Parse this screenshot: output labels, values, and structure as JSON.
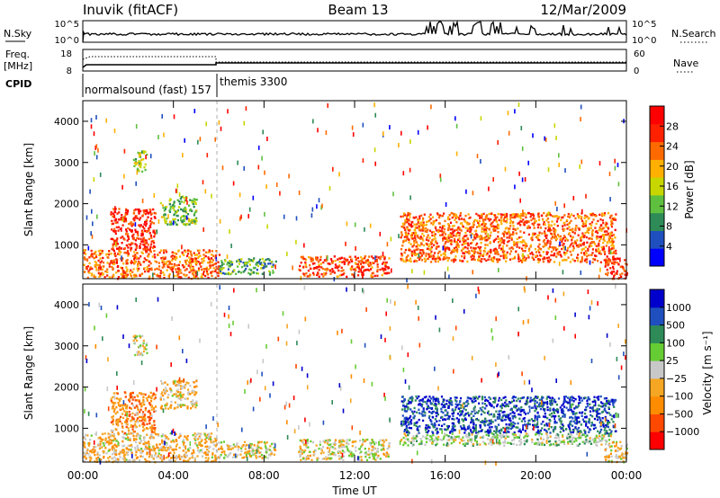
{
  "header": {
    "station": "Inuvik (fitACF)",
    "beam": "Beam 13",
    "date": "12/Mar/2009"
  },
  "nsky_panel": {
    "left_label": "N.Sky",
    "right_label": "N.Search",
    "left_ticks": [
      "10^5",
      "10^0"
    ],
    "right_ticks": [
      "10^5",
      "10^0"
    ]
  },
  "freq_panel": {
    "left_label_1": "Freq.",
    "left_label_2": "[MHz]",
    "right_label": "Nave",
    "left_ticks": [
      "18",
      "8"
    ],
    "right_ticks": [
      "60",
      "0"
    ]
  },
  "cpid": {
    "label": "CPID",
    "modes": [
      {
        "name": "normalsound (fast) 157",
        "start_hour": 0
      },
      {
        "name": "themis 3300",
        "start_hour": 6
      }
    ]
  },
  "colors": {
    "scale": [
      "#0000ff",
      "#1f4fbf",
      "#2e8b57",
      "#5fbf3f",
      "#c8d600",
      "#ffb000",
      "#ff6a00",
      "#ff2000",
      "#ff0000"
    ],
    "velocity_scale": [
      "#ff0000",
      "#ff4800",
      "#ff8c00",
      "#f5a623",
      "#c8c8c8",
      "#66cc33",
      "#2e8b57",
      "#1f4fbf",
      "#0000cc"
    ]
  },
  "chart_data": [
    {
      "type": "heatmap",
      "name": "power",
      "ylabel": "Slant Range [km]",
      "xlabel": "",
      "x_range_hours": [
        0,
        24
      ],
      "ylim": [
        180,
        4500
      ],
      "x_ticks": [
        "00:00",
        "04:00",
        "08:00",
        "12:00",
        "16:00",
        "20:00",
        "00:00"
      ],
      "y_ticks": [
        "1000",
        "2000",
        "3000",
        "4000"
      ],
      "colorbar": {
        "label": "Power [dB]",
        "ticks": [
          "28",
          "24",
          "20",
          "16",
          "12",
          "8",
          "4"
        ],
        "range": [
          0,
          30
        ]
      },
      "regions": [
        {
          "t0": 0.0,
          "t1": 6.0,
          "r0": 200,
          "r1": 900,
          "value": 22
        },
        {
          "t0": 1.2,
          "t1": 3.2,
          "r0": 900,
          "r1": 1900,
          "value": 26
        },
        {
          "t0": 3.4,
          "t1": 5.0,
          "r0": 1500,
          "r1": 2200,
          "value": 12
        },
        {
          "t0": 2.2,
          "t1": 2.8,
          "r0": 2800,
          "r1": 3300,
          "value": 14
        },
        {
          "t0": 6.0,
          "t1": 8.5,
          "r0": 300,
          "r1": 700,
          "value": 10
        },
        {
          "t0": 9.5,
          "t1": 13.5,
          "r0": 250,
          "r1": 750,
          "value": 24
        },
        {
          "t0": 14.0,
          "t1": 23.5,
          "r0": 600,
          "r1": 1800,
          "value": 22
        },
        {
          "t0": 23.0,
          "t1": 24.0,
          "r0": 200,
          "r1": 700,
          "value": 26
        }
      ]
    },
    {
      "type": "heatmap",
      "name": "velocity",
      "ylabel": "Slant Range [km]",
      "xlabel": "Time UT",
      "x_range_hours": [
        0,
        24
      ],
      "ylim": [
        180,
        4500
      ],
      "x_ticks": [
        "00:00",
        "04:00",
        "08:00",
        "12:00",
        "16:00",
        "20:00",
        "00:00"
      ],
      "y_ticks": [
        "1000",
        "2000",
        "3000",
        "4000"
      ],
      "colorbar": {
        "label": "Velocity [m s⁻¹]",
        "ticks": [
          "1000",
          "500",
          "100",
          "25",
          "−25",
          "−100",
          "−500",
          "−1000"
        ],
        "range": [
          -1000,
          1000
        ]
      },
      "regions": [
        {
          "t0": 0.0,
          "t1": 6.0,
          "r0": 200,
          "r1": 900,
          "value": -200
        },
        {
          "t0": 1.2,
          "t1": 3.2,
          "r0": 900,
          "r1": 1900,
          "value": -400
        },
        {
          "t0": 3.4,
          "t1": 5.0,
          "r0": 1500,
          "r1": 2200,
          "value": -150
        },
        {
          "t0": 2.2,
          "t1": 2.8,
          "r0": 2800,
          "r1": 3300,
          "value": 0
        },
        {
          "t0": 6.0,
          "t1": 8.5,
          "r0": 300,
          "r1": 700,
          "value": -80
        },
        {
          "t0": 9.5,
          "t1": 13.5,
          "r0": 250,
          "r1": 750,
          "value": -60
        },
        {
          "t0": 14.0,
          "t1": 23.5,
          "r0": 900,
          "r1": 1800,
          "value": 700
        },
        {
          "t0": 14.0,
          "t1": 23.5,
          "r0": 600,
          "r1": 900,
          "value": 150
        },
        {
          "t0": 23.0,
          "t1": 24.0,
          "r0": 200,
          "r1": 700,
          "value": -120
        }
      ]
    }
  ]
}
